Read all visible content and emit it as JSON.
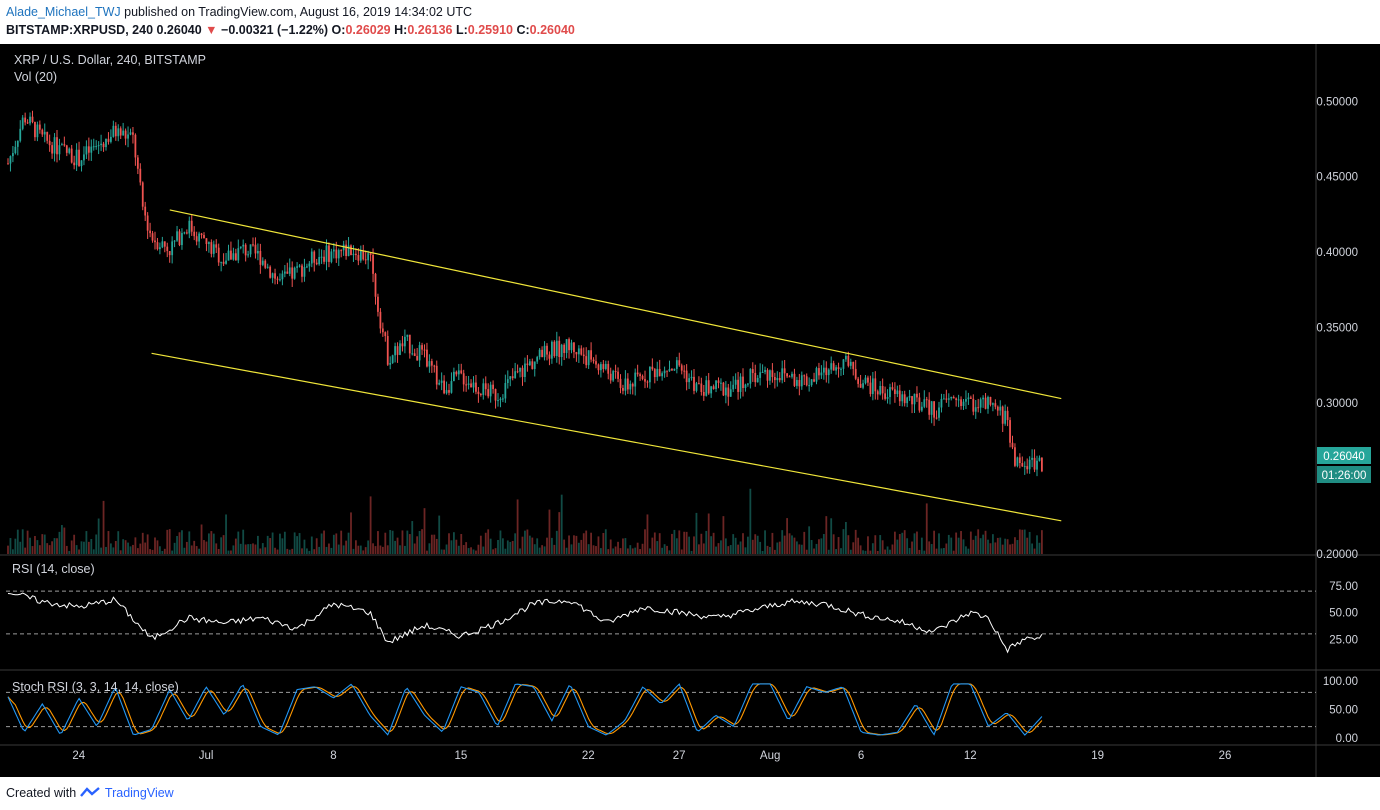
{
  "header": {
    "author": "Alade_Michael_TWJ",
    "published": "published on TradingView.com, August 16, 2019 14:34:02 UTC",
    "symbol": "BITSTAMP:XRPUSD, 240",
    "last": "0.26040",
    "arrow": "▼",
    "change": "−0.00321 (−1.22%)",
    "o_label": "O:",
    "o": "0.26029",
    "h_label": "H:",
    "h": "0.26136",
    "l_label": "L:",
    "l": "0.25910",
    "c_label": "C:",
    "c": "0.26040"
  },
  "footer": {
    "created_with": "Created with",
    "brand": "TradingView",
    "brand_icon": "tradingview-logo-icon"
  },
  "colors": {
    "up": "#26a69a",
    "down": "#ef5350",
    "channel": "#f0e63a",
    "rsi": "#ffffff",
    "stoch_k": "#2196f3",
    "stoch_d": "#ff9800",
    "last_price_bg": "#26a69a"
  },
  "chart_data": {
    "type": "candlestick",
    "title": "XRP / U.S. Dollar, 240, BITSTAMP",
    "volume_label": "Vol (20)",
    "last_price": "0.26040",
    "countdown": "01:26:00",
    "y_ticks": [
      "0.50000",
      "0.45000",
      "0.40000",
      "0.35000",
      "0.30000",
      "0.20000"
    ],
    "y_range": [
      0.2,
      0.53
    ],
    "x_ticks": [
      "24",
      "Jul",
      "8",
      "15",
      "22",
      "27",
      "Aug",
      "6",
      "12",
      "19",
      "26"
    ],
    "x_tick_dates": [
      "2019-06-24",
      "2019-07-01",
      "2019-07-08",
      "2019-07-15",
      "2019-07-22",
      "2019-07-27",
      "2019-08-01",
      "2019-08-06",
      "2019-08-12",
      "2019-08-19",
      "2019-08-26"
    ],
    "x_range": [
      "2019-06-20",
      "2019-08-31"
    ],
    "price_path": [
      [
        "2019-06-20",
        0.455
      ],
      [
        "2019-06-21",
        0.49
      ],
      [
        "2019-06-22",
        0.475
      ],
      [
        "2019-06-23",
        0.468
      ],
      [
        "2019-06-24",
        0.462
      ],
      [
        "2019-06-25",
        0.47
      ],
      [
        "2019-06-26",
        0.48
      ],
      [
        "2019-06-27",
        0.475
      ],
      [
        "2019-06-27T12:00",
        0.43
      ],
      [
        "2019-06-28",
        0.41
      ],
      [
        "2019-06-29",
        0.402
      ],
      [
        "2019-06-30",
        0.418
      ],
      [
        "2019-07-01",
        0.405
      ],
      [
        "2019-07-02",
        0.395
      ],
      [
        "2019-07-03",
        0.402
      ],
      [
        "2019-07-04",
        0.397
      ],
      [
        "2019-07-05",
        0.38
      ],
      [
        "2019-07-06",
        0.387
      ],
      [
        "2019-07-07",
        0.397
      ],
      [
        "2019-07-08",
        0.4
      ],
      [
        "2019-07-09",
        0.402
      ],
      [
        "2019-07-10",
        0.396
      ],
      [
        "2019-07-10T12:00",
        0.36
      ],
      [
        "2019-07-11",
        0.33
      ],
      [
        "2019-07-12",
        0.34
      ],
      [
        "2019-07-13",
        0.33
      ],
      [
        "2019-07-14",
        0.31
      ],
      [
        "2019-07-15",
        0.318
      ],
      [
        "2019-07-16",
        0.31
      ],
      [
        "2019-07-17",
        0.305
      ],
      [
        "2019-07-18",
        0.318
      ],
      [
        "2019-07-19",
        0.328
      ],
      [
        "2019-07-20",
        0.335
      ],
      [
        "2019-07-21",
        0.338
      ],
      [
        "2019-07-22",
        0.33
      ],
      [
        "2019-07-23",
        0.322
      ],
      [
        "2019-07-24",
        0.31
      ],
      [
        "2019-07-25",
        0.318
      ],
      [
        "2019-07-26",
        0.324
      ],
      [
        "2019-07-27",
        0.325
      ],
      [
        "2019-07-28",
        0.309
      ],
      [
        "2019-07-29",
        0.31
      ],
      [
        "2019-07-30",
        0.31
      ],
      [
        "2019-07-31",
        0.318
      ],
      [
        "2019-08-01",
        0.32
      ],
      [
        "2019-08-02",
        0.318
      ],
      [
        "2019-08-03",
        0.315
      ],
      [
        "2019-08-04",
        0.32
      ],
      [
        "2019-08-05",
        0.328
      ],
      [
        "2019-08-06",
        0.315
      ],
      [
        "2019-08-07",
        0.308
      ],
      [
        "2019-08-08",
        0.305
      ],
      [
        "2019-08-09",
        0.3
      ],
      [
        "2019-08-10",
        0.295
      ],
      [
        "2019-08-11",
        0.303
      ],
      [
        "2019-08-12",
        0.3
      ],
      [
        "2019-08-13",
        0.298
      ],
      [
        "2019-08-14",
        0.29
      ],
      [
        "2019-08-14T12:00",
        0.26
      ],
      [
        "2019-08-15",
        0.258
      ],
      [
        "2019-08-15T12:00",
        0.262
      ],
      [
        "2019-08-16",
        0.2604
      ]
    ],
    "channel": {
      "upper": [
        [
          "2019-06-29",
          0.428
        ],
        [
          "2019-08-17",
          0.303
        ]
      ],
      "lower": [
        [
          "2019-06-28",
          0.333
        ],
        [
          "2019-08-17",
          0.222
        ]
      ]
    },
    "rsi": {
      "label": "RSI (14, close)",
      "y_ticks": [
        "75.00",
        "50.00",
        "25.00"
      ],
      "levels": [
        70,
        30
      ],
      "range": [
        0,
        100
      ],
      "path": [
        [
          "2019-06-20",
          70
        ],
        [
          "2019-06-22",
          60
        ],
        [
          "2019-06-24",
          55
        ],
        [
          "2019-06-26",
          62
        ],
        [
          "2019-06-28",
          25
        ],
        [
          "2019-06-30",
          45
        ],
        [
          "2019-07-02",
          40
        ],
        [
          "2019-07-04",
          45
        ],
        [
          "2019-07-06",
          35
        ],
        [
          "2019-07-08",
          58
        ],
        [
          "2019-07-10",
          50
        ],
        [
          "2019-07-11",
          22
        ],
        [
          "2019-07-13",
          38
        ],
        [
          "2019-07-15",
          28
        ],
        [
          "2019-07-17",
          40
        ],
        [
          "2019-07-19",
          58
        ],
        [
          "2019-07-21",
          62
        ],
        [
          "2019-07-23",
          40
        ],
        [
          "2019-07-25",
          55
        ],
        [
          "2019-07-27",
          50
        ],
        [
          "2019-07-29",
          45
        ],
        [
          "2019-07-31",
          52
        ],
        [
          "2019-08-02",
          60
        ],
        [
          "2019-08-04",
          58
        ],
        [
          "2019-08-06",
          48
        ],
        [
          "2019-08-08",
          42
        ],
        [
          "2019-08-10",
          32
        ],
        [
          "2019-08-12",
          50
        ],
        [
          "2019-08-13",
          45
        ],
        [
          "2019-08-14",
          15
        ],
        [
          "2019-08-15",
          25
        ],
        [
          "2019-08-16",
          27
        ]
      ]
    },
    "stoch_rsi": {
      "label": "Stoch RSI (3, 3, 14, 14, close)",
      "y_ticks": [
        "100.00",
        "50.00",
        "0.00"
      ],
      "levels": [
        80,
        20
      ],
      "range": [
        0,
        100
      ],
      "k_path": [
        [
          "2019-06-20",
          80
        ],
        [
          "2019-06-21",
          10
        ],
        [
          "2019-06-22",
          60
        ],
        [
          "2019-06-23",
          5
        ],
        [
          "2019-06-24",
          70
        ],
        [
          "2019-06-25",
          20
        ],
        [
          "2019-06-26",
          90
        ],
        [
          "2019-06-27",
          5
        ],
        [
          "2019-06-28",
          15
        ],
        [
          "2019-06-29",
          85
        ],
        [
          "2019-06-30",
          30
        ],
        [
          "2019-07-01",
          90
        ],
        [
          "2019-07-02",
          40
        ],
        [
          "2019-07-03",
          95
        ],
        [
          "2019-07-04",
          20
        ],
        [
          "2019-07-05",
          5
        ],
        [
          "2019-07-06",
          85
        ],
        [
          "2019-07-07",
          90
        ],
        [
          "2019-07-08",
          70
        ],
        [
          "2019-07-09",
          95
        ],
        [
          "2019-07-10",
          40
        ],
        [
          "2019-07-11",
          5
        ],
        [
          "2019-07-12",
          90
        ],
        [
          "2019-07-13",
          40
        ],
        [
          "2019-07-14",
          10
        ],
        [
          "2019-07-15",
          90
        ],
        [
          "2019-07-16",
          80
        ],
        [
          "2019-07-17",
          20
        ],
        [
          "2019-07-18",
          95
        ],
        [
          "2019-07-19",
          90
        ],
        [
          "2019-07-20",
          30
        ],
        [
          "2019-07-21",
          95
        ],
        [
          "2019-07-22",
          20
        ],
        [
          "2019-07-23",
          5
        ],
        [
          "2019-07-24",
          30
        ],
        [
          "2019-07-25",
          90
        ],
        [
          "2019-07-26",
          60
        ],
        [
          "2019-07-27",
          95
        ],
        [
          "2019-07-28",
          10
        ],
        [
          "2019-07-29",
          40
        ],
        [
          "2019-07-30",
          20
        ],
        [
          "2019-07-31",
          95
        ],
        [
          "2019-08-01",
          95
        ],
        [
          "2019-08-02",
          30
        ],
        [
          "2019-08-03",
          90
        ],
        [
          "2019-08-04",
          80
        ],
        [
          "2019-08-05",
          90
        ],
        [
          "2019-08-06",
          10
        ],
        [
          "2019-08-07",
          5
        ],
        [
          "2019-08-08",
          10
        ],
        [
          "2019-08-09",
          60
        ],
        [
          "2019-08-10",
          5
        ],
        [
          "2019-08-11",
          95
        ],
        [
          "2019-08-12",
          95
        ],
        [
          "2019-08-13",
          20
        ],
        [
          "2019-08-14",
          45
        ],
        [
          "2019-08-15",
          5
        ],
        [
          "2019-08-16",
          40
        ]
      ]
    }
  }
}
